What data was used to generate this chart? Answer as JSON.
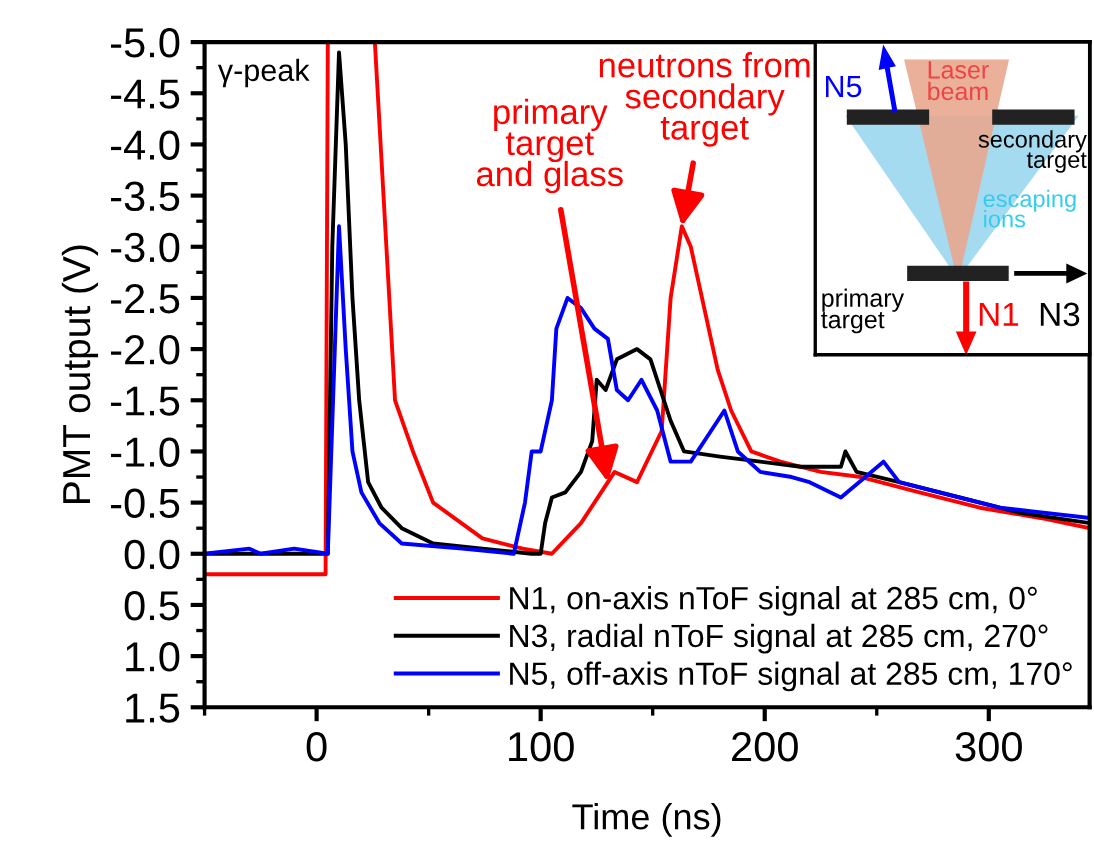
{
  "chart_data": {
    "type": "line",
    "xlabel": "Time (ns)",
    "ylabel": "PMT output (V)",
    "xlim": [
      -50,
      345
    ],
    "xticks": [
      0,
      100,
      200,
      300
    ],
    "ylim": [
      1.5,
      -5.0
    ],
    "yticks": [
      {
        "value": -5.0,
        "label": "-5.0"
      },
      {
        "value": -4.5,
        "label": "-4.5"
      },
      {
        "value": -4.0,
        "label": "-4.0"
      },
      {
        "value": -3.5,
        "label": "-3.5"
      },
      {
        "value": -3.0,
        "label": "-3.0"
      },
      {
        "value": -2.5,
        "label": "-2.5"
      },
      {
        "value": -2.0,
        "label": "-2.0"
      },
      {
        "value": -1.5,
        "label": "-1.5"
      },
      {
        "value": -1.0,
        "label": "-1.0"
      },
      {
        "value": -0.5,
        "label": "-0.5"
      },
      {
        "value": 0.0,
        "label": "0.0"
      },
      {
        "value": 0.5,
        "label": "0.5"
      },
      {
        "value": 1.0,
        "label": "1.0"
      },
      {
        "value": 1.5,
        "label": "1.5"
      }
    ],
    "grid": false,
    "legend": "bottom right",
    "line_style": "solid",
    "marker": "none",
    "series": [
      {
        "name": "N1, on-axis nToF signal at 285 cm, 0°",
        "color": "#ff0000",
        "x": [
          -50,
          -20,
          4,
          5,
          15,
          26,
          35,
          43,
          52,
          74,
          92,
          105,
          118,
          127,
          133,
          143,
          154,
          158,
          163,
          167,
          172,
          179,
          185,
          194,
          207,
          225,
          243,
          269,
          296,
          323,
          345
        ],
        "values": [
          0.2,
          0.2,
          0.2,
          -5.0,
          null,
          -5.0,
          -1.5,
          -1.0,
          -0.5,
          -0.15,
          -0.05,
          0.0,
          -0.3,
          -0.6,
          -0.8,
          -0.7,
          -1.2,
          -2.5,
          -3.2,
          -3.0,
          -2.5,
          -1.8,
          -1.4,
          -1.0,
          -0.9,
          -0.8,
          -0.75,
          -0.6,
          -0.45,
          -0.35,
          -0.25
        ]
      },
      {
        "name": "N3, radial nToF signal at 285 cm, 270°",
        "color": "#000000",
        "x": [
          -50,
          5,
          7,
          10,
          13,
          16,
          19,
          23,
          29,
          38,
          52,
          74,
          96,
          100,
          102,
          105,
          111,
          118,
          123,
          125,
          129,
          134,
          143,
          149,
          158,
          164,
          180,
          198,
          216,
          234,
          236,
          241,
          260,
          287,
          314,
          345
        ],
        "values": [
          0.0,
          0.0,
          -3.0,
          -4.9,
          -4.0,
          -2.5,
          -1.5,
          -0.7,
          -0.45,
          -0.25,
          -0.1,
          -0.05,
          0.0,
          0.0,
          -0.3,
          -0.55,
          -0.6,
          -0.8,
          -1.1,
          -1.7,
          -1.6,
          -1.9,
          -2.0,
          -1.9,
          -1.3,
          -1.0,
          -0.95,
          -0.9,
          -0.85,
          -0.85,
          -1.0,
          -0.8,
          -0.7,
          -0.55,
          -0.4,
          -0.3
        ]
      },
      {
        "name": "N5, off-axis nToF signal at 285 cm, 170°",
        "color": "#0000ff",
        "x": [
          -50,
          -30,
          -25,
          -10,
          5,
          10,
          13,
          16,
          20,
          28,
          38,
          65,
          88,
          93,
          96,
          100,
          105,
          107,
          112,
          118,
          124,
          130,
          134,
          139,
          145,
          152,
          158,
          167,
          176,
          182,
          188,
          198,
          212,
          220,
          234,
          253,
          260,
          278,
          305,
          345
        ],
        "values": [
          0.0,
          -0.05,
          0.0,
          -0.05,
          0.0,
          -3.2,
          -2.0,
          -1.0,
          -0.6,
          -0.3,
          -0.1,
          -0.05,
          0.0,
          -0.5,
          -1.0,
          -1.0,
          -1.5,
          -2.2,
          -2.5,
          -2.4,
          -2.2,
          -2.1,
          -1.6,
          -1.5,
          -1.7,
          -1.4,
          -0.9,
          -0.9,
          -1.2,
          -1.4,
          -1.0,
          -0.8,
          -0.75,
          -0.7,
          -0.55,
          -0.9,
          -0.7,
          -0.6,
          -0.45,
          -0.35
        ]
      }
    ],
    "annotations": [
      "γ-peak",
      {
        "text": "neutrons from\nsecondary\ntarget",
        "x": 163,
        "y": -3.2
      },
      {
        "text": "primary\ntarget\nand glass",
        "x": 130,
        "y": -0.7
      },
      "N5",
      "Laser\nbeam",
      "secondary\ntarget",
      "escaping\nions",
      "primary\ntarget",
      "N3",
      "N1"
    ]
  }
}
